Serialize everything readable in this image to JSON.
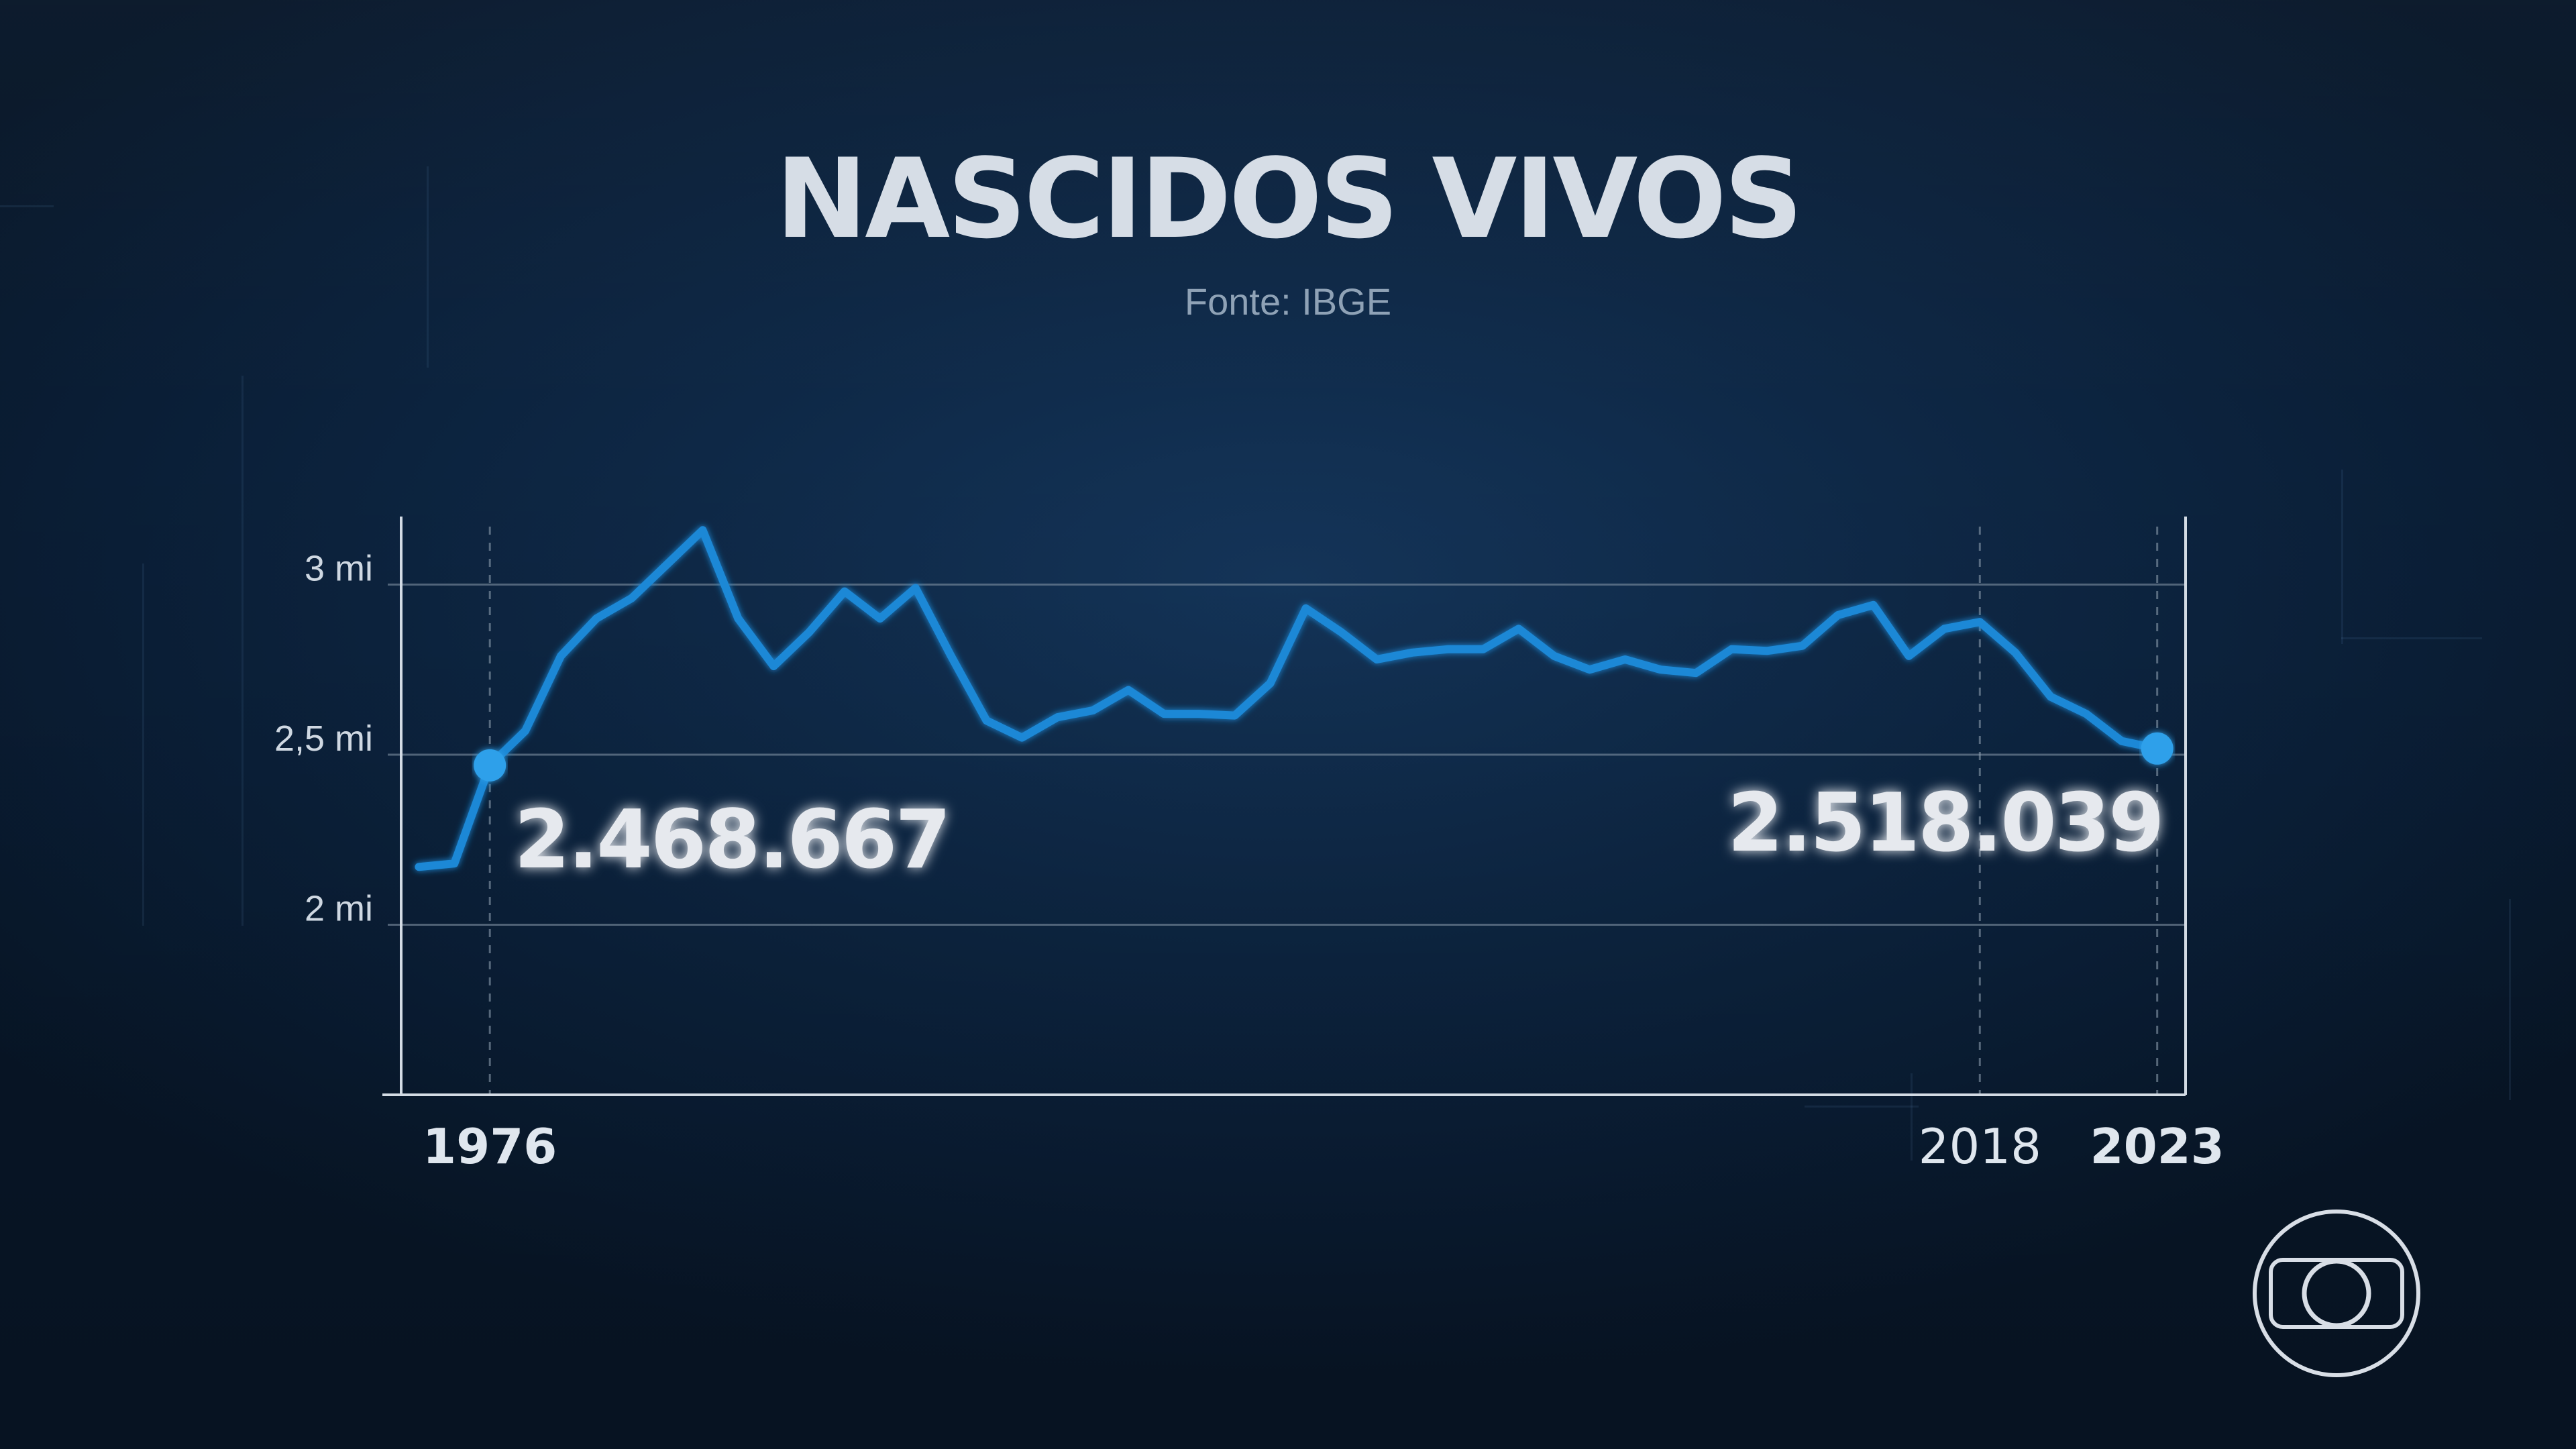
{
  "title": "NASCIDOS VIVOS",
  "source": "Fonte: IBGE",
  "logo_icon": "tv-globo-icon",
  "colors": {
    "line": "#1e88d6",
    "marker": "#2ea0ea",
    "text": "#d6dde6",
    "grid": "#8b9bab"
  },
  "chart_data": {
    "type": "line",
    "title": "NASCIDOS VIVOS",
    "subtitle": "Fonte: IBGE",
    "ylim": [
      1500000,
      3200000
    ],
    "yticks": [
      {
        "value": 2000000,
        "label": "2 mi"
      },
      {
        "value": 2500000,
        "label": "2,5 mi"
      },
      {
        "value": 3000000,
        "label": "3 mi"
      }
    ],
    "xlim": [
      1973.5,
      2023.8
    ],
    "xticks": [
      {
        "value": 1976,
        "label": "1976",
        "bold": true
      },
      {
        "value": 2018,
        "label": "2018",
        "bold": false
      },
      {
        "value": 2023,
        "label": "2023",
        "bold": true
      }
    ],
    "grid": true,
    "x": [
      1974,
      1975,
      1976,
      1977,
      1978,
      1979,
      1980,
      1981,
      1982,
      1983,
      1984,
      1985,
      1986,
      1987,
      1988,
      1989,
      1990,
      1991,
      1992,
      1993,
      1994,
      1995,
      1996,
      1997,
      1998,
      1999,
      2000,
      2001,
      2002,
      2003,
      2004,
      2005,
      2006,
      2007,
      2008,
      2009,
      2010,
      2011,
      2012,
      2013,
      2014,
      2015,
      2016,
      2017,
      2018,
      2019,
      2020,
      2021,
      2022,
      2023
    ],
    "series": [
      {
        "values": [
          2170000,
          2180000,
          2468667,
          2570000,
          2790000,
          2900000,
          2960000,
          3060000,
          3160000,
          2900000,
          2760000,
          2860000,
          2980000,
          2900000,
          2990000,
          2790000,
          2600000,
          2550000,
          2610000,
          2630000,
          2690000,
          2620000,
          2620000,
          2615000,
          2710000,
          2930000,
          2860000,
          2780000,
          2800000,
          2810000,
          2810000,
          2870000,
          2790000,
          2750000,
          2780000,
          2750000,
          2740000,
          2810000,
          2805000,
          2820000,
          2910000,
          2940000,
          2790000,
          2870000,
          2890000,
          2800000,
          2670000,
          2620000,
          2540000,
          2518039
        ]
      }
    ],
    "annotations": [
      {
        "x": 1976,
        "y": 2468667,
        "label": "2.468.667"
      },
      {
        "x": 2023,
        "y": 2518039,
        "label": "2.518.039"
      }
    ]
  }
}
